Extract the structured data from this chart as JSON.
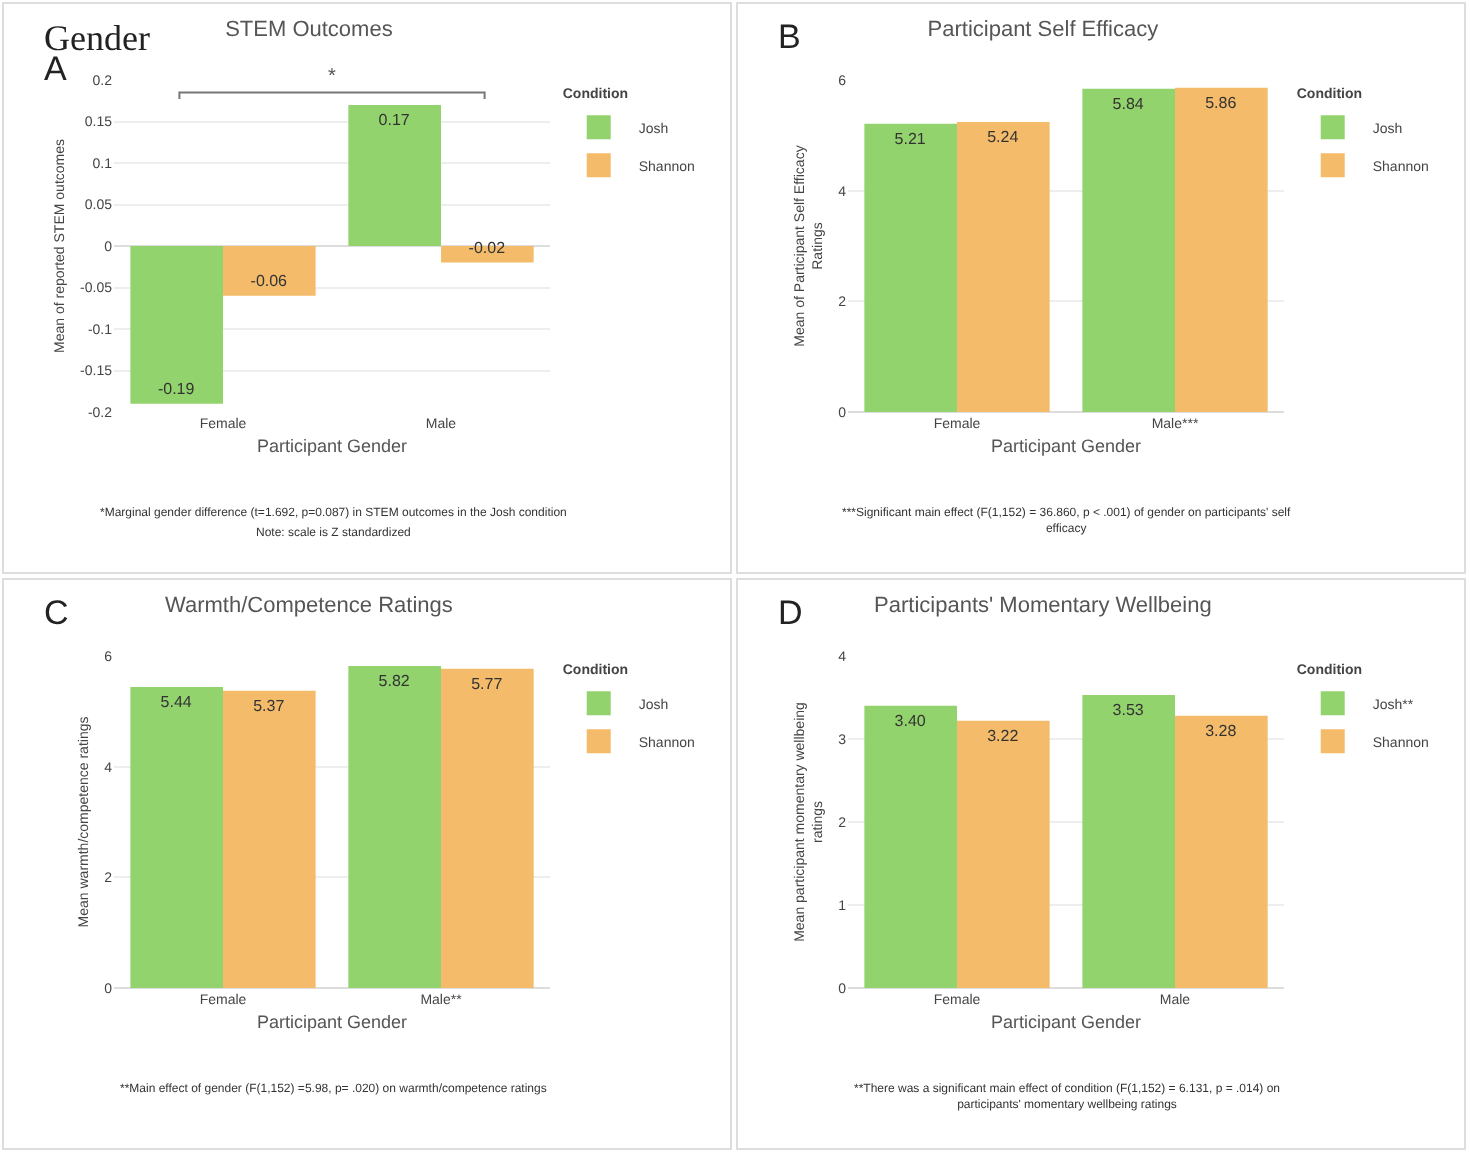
{
  "chart_data": [
    {
      "type": "bar",
      "title": "STEM Outcomes",
      "xlabel": "Participant Gender",
      "ylabel": "Mean of reported STEM outcomes",
      "legend_title": "Condition",
      "categories": [
        "Female",
        "Male"
      ],
      "series": [
        {
          "name": "Josh",
          "color": "#92d36e",
          "values": [
            -0.19,
            0.17
          ]
        },
        {
          "name": "Shannon",
          "color": "#f4bb6a",
          "values": [
            -0.06,
            -0.02
          ]
        }
      ],
      "ylim": [
        -0.2,
        0.2
      ],
      "yticks": [
        -0.2,
        -0.15,
        -0.1,
        -0.05,
        0,
        0.05,
        0.1,
        0.15,
        0.2
      ],
      "grid": "y",
      "legend": "top right",
      "data_labels": true,
      "annotations": [
        "Gender",
        "A",
        "*",
        "*Marginal gender difference (t=1.692, p=0.087) in STEM outcomes in the Josh condition",
        "Note: scale is Z standardized"
      ]
    },
    {
      "type": "bar",
      "title": "Participant Self Efficacy",
      "xlabel": "Participant Gender",
      "ylabel": "Mean of Participant Self Efficacy Ratings",
      "legend_title": "Condition",
      "categories": [
        "Female",
        "Male***"
      ],
      "series": [
        {
          "name": "Josh",
          "color": "#92d36e",
          "values": [
            5.21,
            5.84
          ]
        },
        {
          "name": "Shannon",
          "color": "#f4bb6a",
          "values": [
            5.24,
            5.86
          ]
        }
      ],
      "ylim": [
        0,
        6
      ],
      "yticks": [
        0,
        2,
        4,
        6
      ],
      "grid": "y",
      "legend": "top right",
      "data_labels": true,
      "annotations": [
        "B",
        "***Significant main effect (F(1,152) = 36.860, p < .001) of gender on participants' self efficacy"
      ]
    },
    {
      "type": "bar",
      "title": "Warmth/Competence Ratings",
      "xlabel": "Participant Gender",
      "ylabel": "Mean warmth/competence ratings",
      "legend_title": "Condition",
      "categories": [
        "Female",
        "Male**"
      ],
      "series": [
        {
          "name": "Josh",
          "color": "#92d36e",
          "values": [
            5.44,
            5.82
          ]
        },
        {
          "name": "Shannon",
          "color": "#f4bb6a",
          "values": [
            5.37,
            5.77
          ]
        }
      ],
      "ylim": [
        0,
        6
      ],
      "yticks": [
        0,
        2,
        4,
        6
      ],
      "grid": "y",
      "legend": "top right",
      "data_labels": true,
      "annotations": [
        "C",
        "**Main effect of gender (F(1,152) =5.98, p= .020) on warmth/competence ratings"
      ]
    },
    {
      "type": "bar",
      "title": "Participants' Momentary Wellbeing",
      "xlabel": "Participant Gender",
      "ylabel": "Mean participant momentary wellbeing ratings",
      "legend_title": "Condition",
      "categories": [
        "Female",
        "Male"
      ],
      "series": [
        {
          "name": "Josh**",
          "color": "#92d36e",
          "values": [
            3.4,
            3.53
          ],
          "value_labels": [
            "3.40",
            "3.53"
          ]
        },
        {
          "name": "Shannon",
          "color": "#f4bb6a",
          "values": [
            3.22,
            3.28
          ]
        }
      ],
      "ylim": [
        0,
        4
      ],
      "yticks": [
        0,
        1,
        2,
        3,
        4
      ],
      "grid": "y",
      "legend": "top right",
      "data_labels": true,
      "annotations": [
        "D",
        "**There was a significant main effect of condition (F(1,152) = 6.131, p = .014) on participants' momentary wellbeing ratings"
      ]
    }
  ]
}
